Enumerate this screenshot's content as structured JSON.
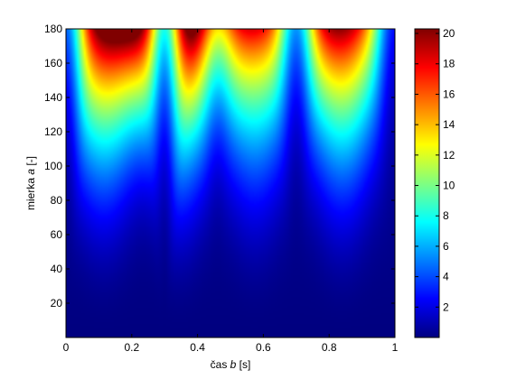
{
  "chart_data": {
    "type": "heatmap",
    "title": "",
    "xlabel_parts": [
      "čas ",
      "b",
      " [s]"
    ],
    "ylabel_parts": [
      "mierka ",
      "a",
      " [-]"
    ],
    "xlim": [
      0,
      1
    ],
    "ylim": [
      0,
      180
    ],
    "xticks": [
      "0",
      "0.2",
      "0.4",
      "0.6",
      "0.8",
      "1"
    ],
    "xtick_values": [
      0,
      0.2,
      0.4,
      0.6,
      0.8,
      1
    ],
    "yticks": [
      "20",
      "40",
      "60",
      "80",
      "100",
      "120",
      "140",
      "160",
      "180"
    ],
    "ytick_values": [
      20,
      40,
      60,
      80,
      100,
      120,
      140,
      160,
      180
    ],
    "colorbar": {
      "range": [
        0,
        20.3
      ],
      "ticks": [
        "2",
        "4",
        "6",
        "8",
        "10",
        "12",
        "14",
        "16",
        "18",
        "20"
      ],
      "tick_values": [
        2,
        4,
        6,
        8,
        10,
        12,
        14,
        16,
        18,
        20
      ],
      "colormap": "jet"
    },
    "lobes": [
      {
        "center": 0.115,
        "peak": 20.0,
        "halfwidth": 0.16
      },
      {
        "center": 0.345,
        "peak": 20.3,
        "halfwidth": 0.14
      },
      {
        "center": 0.575,
        "peak": 15.5,
        "halfwidth": 0.15
      },
      {
        "center": 0.84,
        "peak": 18.5,
        "halfwidth": 0.15
      }
    ],
    "notches": [
      {
        "x": 0.0,
        "strength": 1.0
      },
      {
        "x": 0.3,
        "strength": 1.0
      },
      {
        "x": 0.46,
        "strength": 0.5
      },
      {
        "x": 0.7,
        "strength": 1.0
      },
      {
        "x": 1.0,
        "strength": 1.0
      }
    ],
    "grid": false,
    "legend": "none"
  }
}
